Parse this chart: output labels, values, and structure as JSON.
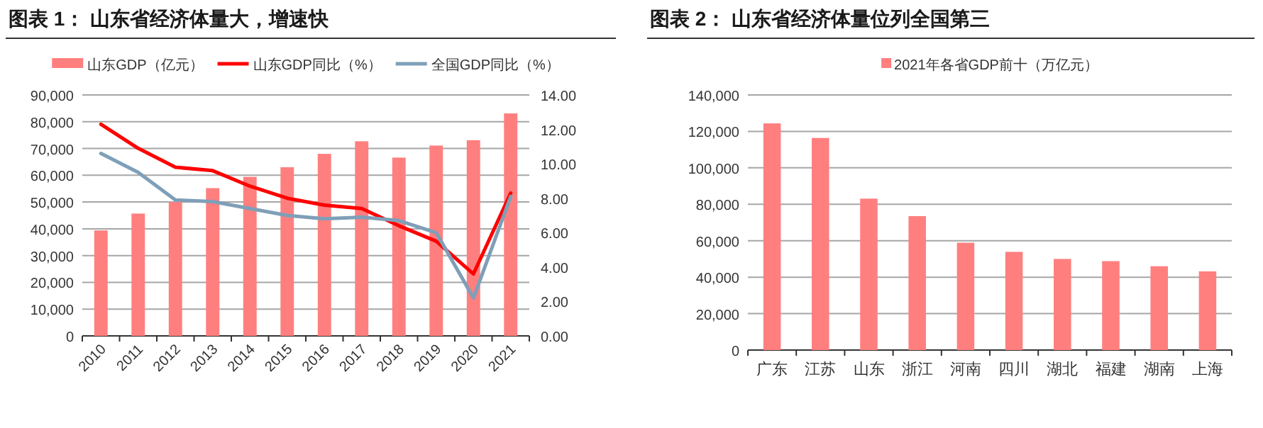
{
  "chart_data": [
    {
      "type": "bar",
      "title": "图表 1： 山东省经济体量大，增速快",
      "categories": [
        "2010",
        "2011",
        "2012",
        "2013",
        "2014",
        "2015",
        "2016",
        "2017",
        "2018",
        "2019",
        "2020",
        "2021"
      ],
      "series": [
        {
          "name": "山东GDP（亿元）",
          "color": "#ff7f7f",
          "values": [
            39400,
            45700,
            50000,
            55200,
            59400,
            63000,
            68000,
            72700,
            66600,
            71100,
            73100,
            83100
          ]
        },
        {
          "name": "山东GDP同比（%）",
          "type": "line",
          "axis": "y2",
          "color": "#ff0000",
          "values": [
            12.3,
            10.9,
            9.8,
            9.6,
            8.7,
            8.0,
            7.6,
            7.4,
            6.4,
            5.5,
            3.6,
            8.3
          ]
        },
        {
          "name": "全国GDP同比（%）",
          "type": "line",
          "axis": "y2",
          "color": "#7f9fb8",
          "values": [
            10.6,
            9.5,
            7.9,
            7.8,
            7.4,
            7.0,
            6.8,
            6.9,
            6.7,
            6.0,
            2.2,
            8.1
          ]
        }
      ],
      "ylim": [
        0,
        90000
      ],
      "yticks": [
        {
          "value": 0,
          "label": "0"
        },
        {
          "value": 10000,
          "label": "10,000"
        },
        {
          "value": 20000,
          "label": "20,000"
        },
        {
          "value": 30000,
          "label": "30,000"
        },
        {
          "value": 40000,
          "label": "40,000"
        },
        {
          "value": 50000,
          "label": "50,000"
        },
        {
          "value": 60000,
          "label": "60,000"
        },
        {
          "value": 70000,
          "label": "70,000"
        },
        {
          "value": 80000,
          "label": "80,000"
        },
        {
          "value": 90000,
          "label": "90,000"
        }
      ],
      "y2lim": [
        0,
        14
      ],
      "y2ticks": [
        {
          "value": 0,
          "label": "0.00"
        },
        {
          "value": 2,
          "label": "2.00"
        },
        {
          "value": 4,
          "label": "4.00"
        },
        {
          "value": 6,
          "label": "6.00"
        },
        {
          "value": 8,
          "label": "8.00"
        },
        {
          "value": 10,
          "label": "10.00"
        },
        {
          "value": 12,
          "label": "12.00"
        },
        {
          "value": 14,
          "label": "14.00"
        }
      ],
      "grid": "y",
      "legend": "top"
    },
    {
      "type": "bar",
      "title": "图表 2： 山东省经济体量位列全国第三",
      "categories": [
        "广东",
        "江苏",
        "山东",
        "浙江",
        "河南",
        "四川",
        "湖北",
        "福建",
        "湖南",
        "上海"
      ],
      "series": [
        {
          "name": "2021年各省GDP前十（万亿元）",
          "color": "#ff7f7f",
          "values": [
            124400,
            116400,
            83100,
            73500,
            58900,
            53900,
            50000,
            48800,
            46000,
            43200
          ]
        }
      ],
      "ylim": [
        0,
        140000
      ],
      "yticks": [
        {
          "value": 0,
          "label": "0"
        },
        {
          "value": 20000,
          "label": "20,000"
        },
        {
          "value": 40000,
          "label": "40,000"
        },
        {
          "value": 60000,
          "label": "60,000"
        },
        {
          "value": 80000,
          "label": "80,000"
        },
        {
          "value": 100000,
          "label": "100,000"
        },
        {
          "value": 120000,
          "label": "120,000"
        },
        {
          "value": 140000,
          "label": "140,000"
        }
      ],
      "grid": "y",
      "legend": "top"
    }
  ]
}
